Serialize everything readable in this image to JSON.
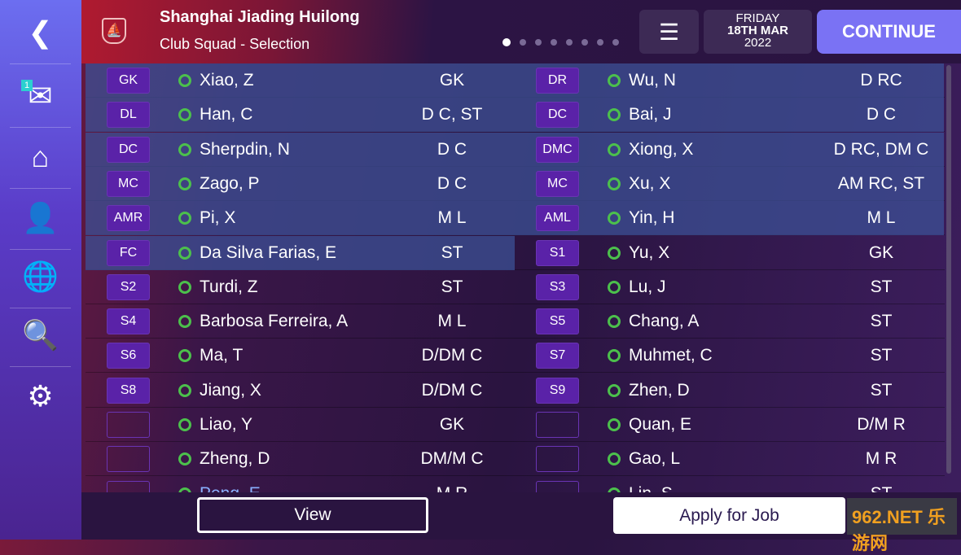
{
  "sidebar": {
    "items": [
      {
        "icon": "back-icon",
        "glyph": "❮"
      },
      {
        "icon": "mail-icon",
        "glyph": "✉",
        "badge": "1"
      },
      {
        "icon": "home-icon",
        "glyph": "⌂"
      },
      {
        "icon": "person-icon",
        "glyph": "👤"
      },
      {
        "icon": "globe-icon",
        "glyph": "🌐"
      },
      {
        "icon": "search-icon",
        "glyph": "🔍"
      },
      {
        "icon": "gear-icon",
        "glyph": "⚙"
      }
    ]
  },
  "header": {
    "club": "Shanghai Jiading Huilong",
    "subtitle": "Club Squad - Selection",
    "page_count": 8,
    "current_page": 1,
    "date_day": "FRIDAY",
    "date_main": "18TH MAR",
    "date_year": "2022",
    "continue": "CONTINUE"
  },
  "colors": {
    "accent": "#7a72f4",
    "slot": "#5a22a8",
    "status": "#4cc04c"
  },
  "rows": [
    {
      "l": {
        "slot": "GK",
        "name": "Xiao, Z",
        "pos": "GK",
        "hl": true
      },
      "r": {
        "slot": "DR",
        "name": "Wu, N",
        "pos": "D RC",
        "hl": true
      }
    },
    {
      "l": {
        "slot": "DL",
        "name": "Han, C",
        "pos": "D C, ST",
        "hl": true
      },
      "r": {
        "slot": "DC",
        "name": "Bai, J",
        "pos": "D C",
        "hl": true
      }
    },
    {
      "l": {
        "slot": "DC",
        "name": "Sherpdin, N",
        "pos": "D C",
        "hl": true
      },
      "r": {
        "slot": "DMC",
        "name": "Xiong, X",
        "pos": "D RC, DM C",
        "hl": true
      }
    },
    {
      "l": {
        "slot": "MC",
        "name": "Zago, P",
        "pos": "D C",
        "hl": true
      },
      "r": {
        "slot": "MC",
        "name": "Xu, X",
        "pos": "AM RC, ST",
        "hl": true
      }
    },
    {
      "l": {
        "slot": "AMR",
        "name": "Pi, X",
        "pos": "M L",
        "hl": true
      },
      "r": {
        "slot": "AML",
        "name": "Yin, H",
        "pos": "M L",
        "hl": true
      }
    },
    {
      "l": {
        "slot": "FC",
        "name": "Da Silva Farias, E",
        "pos": "ST",
        "hl": true
      },
      "r": {
        "slot": "S1",
        "name": "Yu, X",
        "pos": "GK",
        "hl": false
      }
    },
    {
      "l": {
        "slot": "S2",
        "name": "Turdi, Z",
        "pos": "ST",
        "hl": false
      },
      "r": {
        "slot": "S3",
        "name": "Lu, J",
        "pos": "ST",
        "hl": false
      }
    },
    {
      "l": {
        "slot": "S4",
        "name": "Barbosa Ferreira, A",
        "pos": "M L",
        "hl": false
      },
      "r": {
        "slot": "S5",
        "name": "Chang, A",
        "pos": "ST",
        "hl": false
      }
    },
    {
      "l": {
        "slot": "S6",
        "name": "Ma, T",
        "pos": "D/DM C",
        "hl": false
      },
      "r": {
        "slot": "S7",
        "name": "Muhmet, C",
        "pos": "ST",
        "hl": false
      }
    },
    {
      "l": {
        "slot": "S8",
        "name": "Jiang, X",
        "pos": "D/DM C",
        "hl": false
      },
      "r": {
        "slot": "S9",
        "name": "Zhen, D",
        "pos": "ST",
        "hl": false
      }
    },
    {
      "l": {
        "slot": "",
        "name": "Liao, Y",
        "pos": "GK",
        "hl": false
      },
      "r": {
        "slot": "",
        "name": "Quan, E",
        "pos": "D/M R",
        "hl": false
      }
    },
    {
      "l": {
        "slot": "",
        "name": "Zheng, D",
        "pos": "DM/M C",
        "hl": false
      },
      "r": {
        "slot": "",
        "name": "Gao, L",
        "pos": "M R",
        "hl": false
      }
    },
    {
      "l": {
        "slot": "",
        "name": "Peng, E",
        "pos": "M R",
        "hl": false
      },
      "r": {
        "slot": "",
        "name": "Lin, S",
        "pos": "ST",
        "hl": false
      }
    }
  ],
  "footer": {
    "view": "View",
    "apply": "Apply for Job",
    "watermark": "962.NET 乐游网"
  }
}
